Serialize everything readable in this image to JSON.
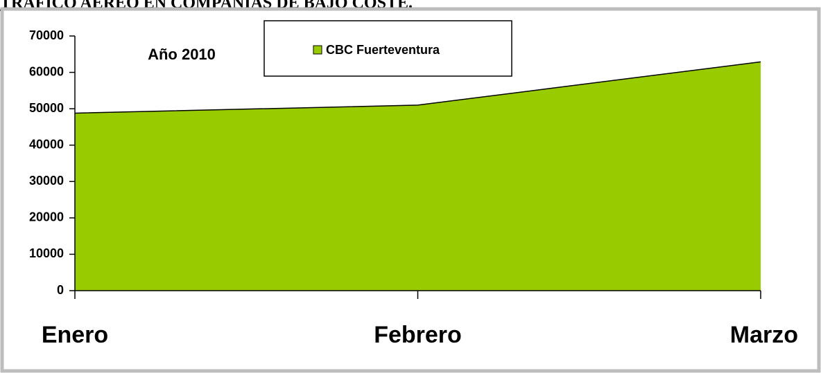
{
  "chart_data": {
    "type": "area",
    "title": "TRÁFICO AÉREO EN COMPAÑÍAS DE BAJO COSTE.",
    "annotation": "Año 2010",
    "categories": [
      "Enero",
      "Febrero",
      "Marzo"
    ],
    "series": [
      {
        "name": "CBC Fuerteventura",
        "color": "#99cc00",
        "values": [
          48800,
          51000,
          62900
        ]
      }
    ],
    "ylim": [
      0,
      70000
    ],
    "yticks": [
      0,
      10000,
      20000,
      30000,
      40000,
      50000,
      60000,
      70000
    ],
    "grid": false,
    "legend": "top"
  }
}
